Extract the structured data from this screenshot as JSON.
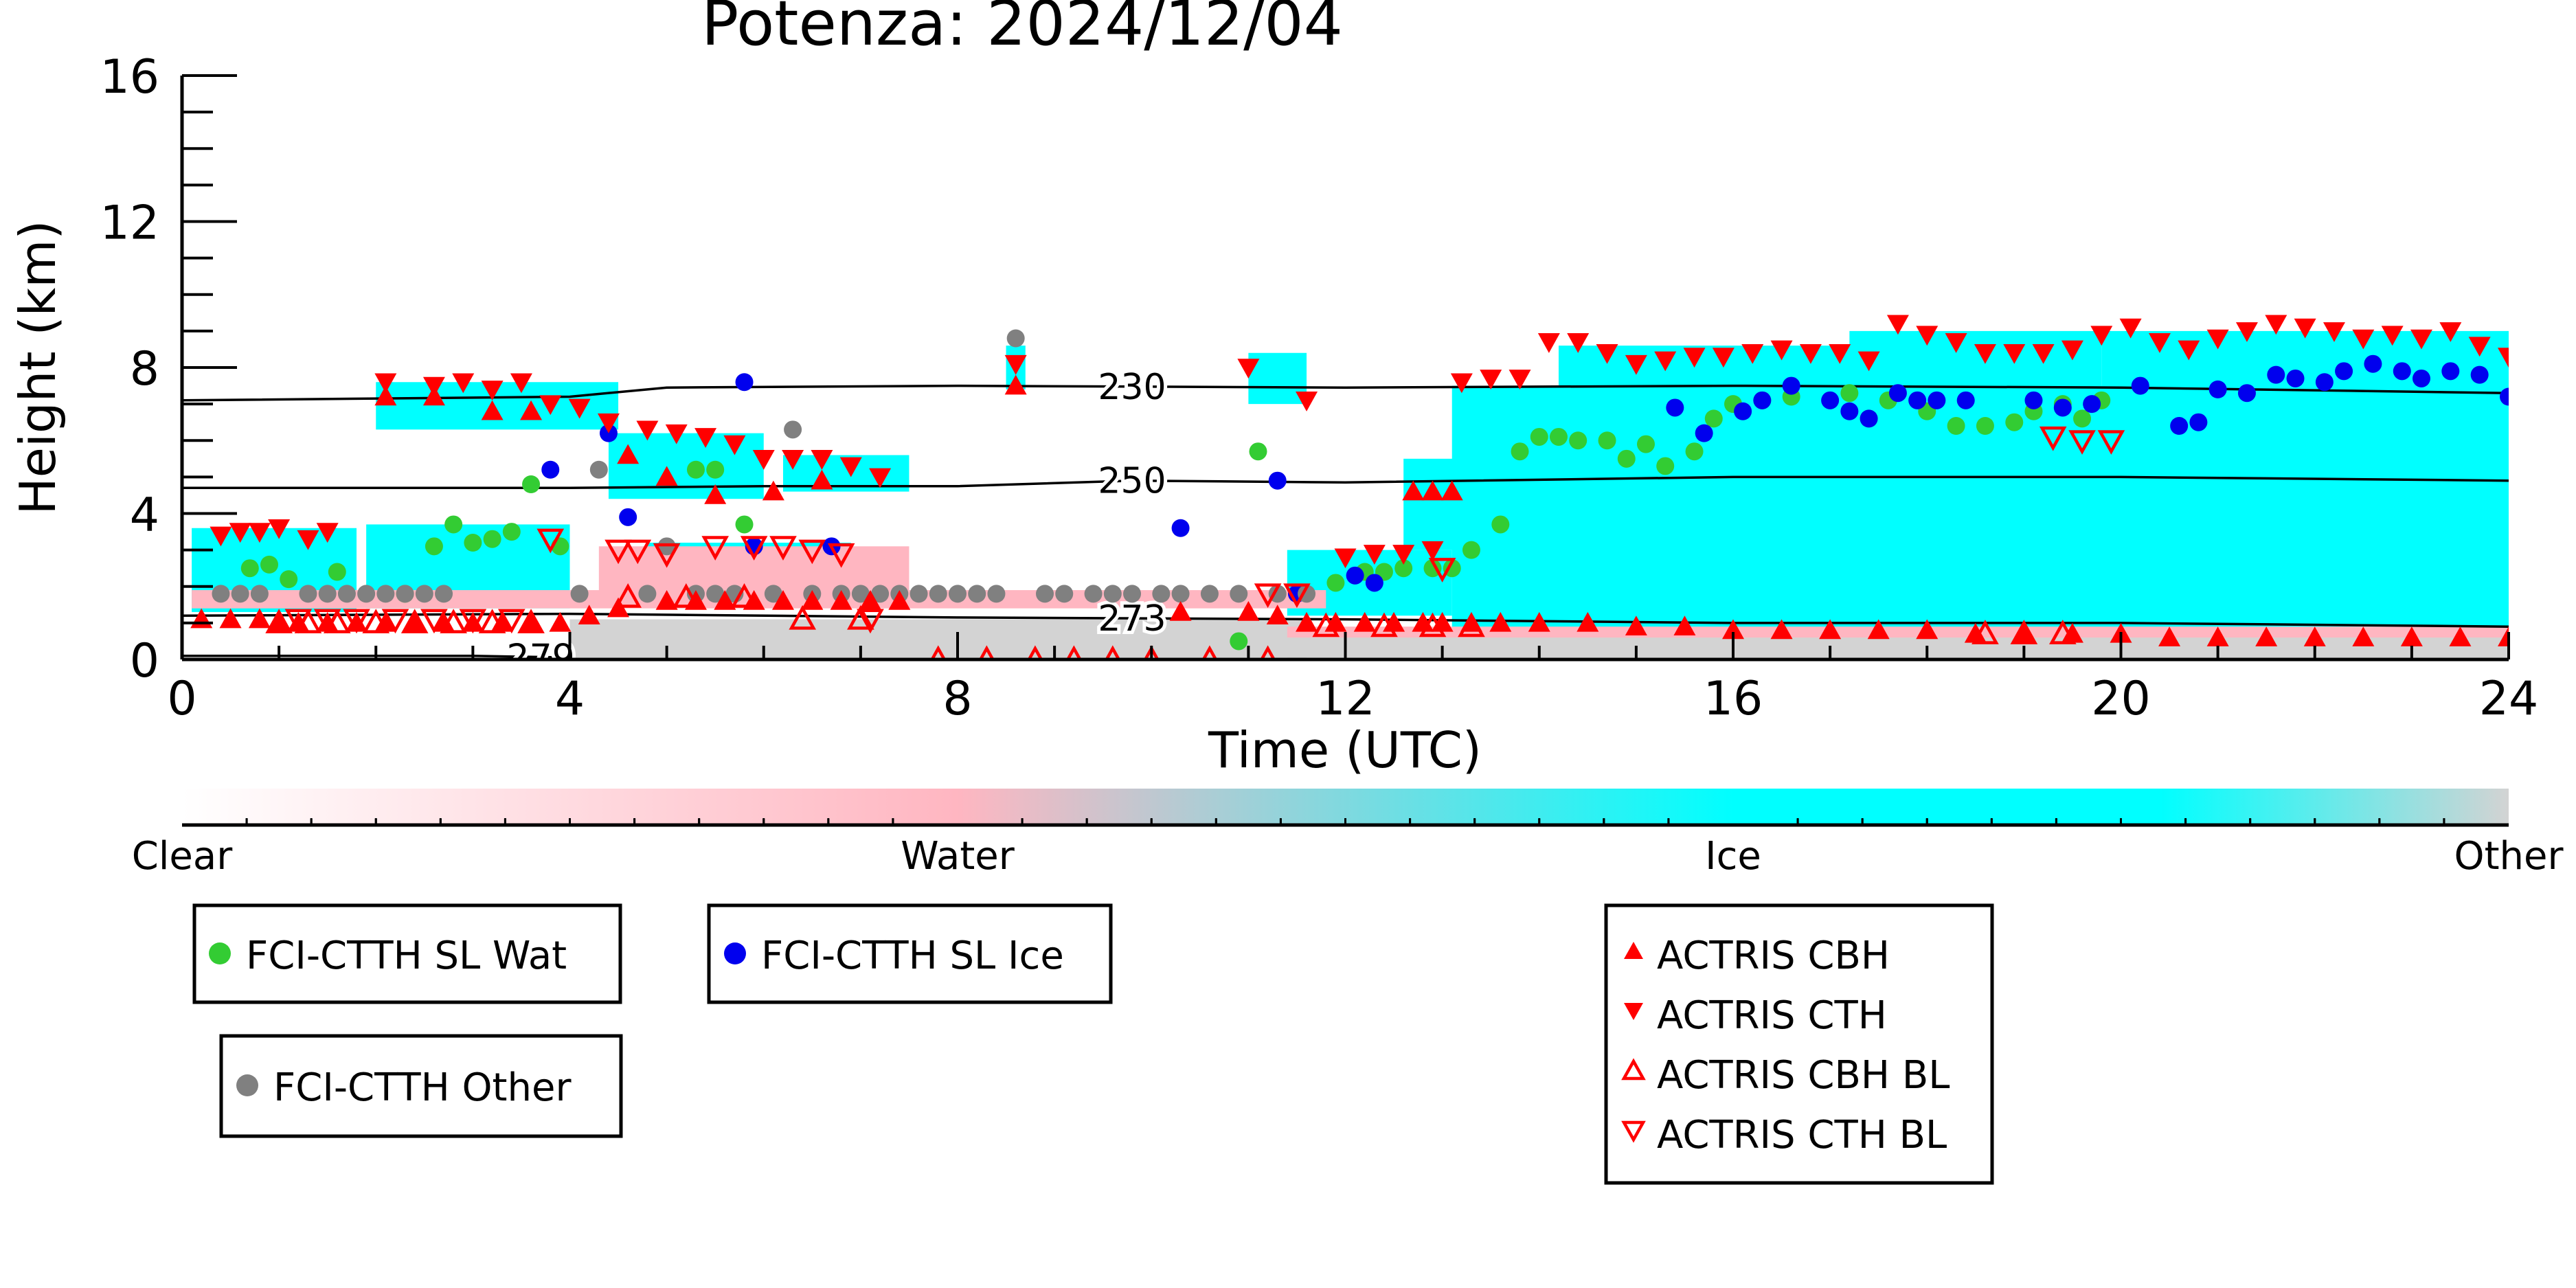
{
  "chart_data": {
    "type": "scatter",
    "title": "Potenza: 2024/12/04",
    "xlabel": "Time (UTC)",
    "ylabel": "Height (km)",
    "xlim": [
      0,
      24
    ],
    "ylim": [
      0,
      16
    ],
    "x_ticks": [
      "0",
      "4",
      "8",
      "12",
      "16",
      "20",
      "24"
    ],
    "y_ticks": [
      "0",
      "4",
      "8",
      "12",
      "16"
    ],
    "grid": false,
    "colors": {
      "water": "#33cc33",
      "ice": "#0000ee",
      "other": "#808080",
      "actris": "#ff0000",
      "cloud_ice": "#00ffff",
      "cloud_water": "#ffb6c1",
      "cloud_other": "#d3d3d3"
    },
    "classification_bar": {
      "labels": [
        "Clear",
        "Water",
        "Ice",
        "Other"
      ]
    },
    "contours": [
      {
        "label": "230",
        "label_x": 9.8,
        "points": [
          [
            0,
            7.1
          ],
          [
            4,
            7.2
          ],
          [
            5,
            7.45
          ],
          [
            8,
            7.5
          ],
          [
            12,
            7.45
          ],
          [
            16,
            7.5
          ],
          [
            20,
            7.45
          ],
          [
            24,
            7.3
          ]
        ]
      },
      {
        "label": "250",
        "label_x": 9.8,
        "points": [
          [
            0,
            4.7
          ],
          [
            4,
            4.7
          ],
          [
            6,
            4.75
          ],
          [
            8,
            4.75
          ],
          [
            9.8,
            4.9
          ],
          [
            12,
            4.85
          ],
          [
            16,
            5.0
          ],
          [
            20,
            5.0
          ],
          [
            24,
            4.9
          ]
        ]
      },
      {
        "label": "273",
        "label_x": 9.8,
        "points": [
          [
            0,
            1.2
          ],
          [
            4,
            1.25
          ],
          [
            8,
            1.15
          ],
          [
            12,
            1.1
          ],
          [
            16,
            1.0
          ],
          [
            20,
            1.0
          ],
          [
            24,
            0.9
          ]
        ]
      },
      {
        "label": "279",
        "label_x": 3.7,
        "points": [
          [
            0,
            0.1
          ],
          [
            3.0,
            0.1
          ],
          [
            4,
            0.05
          ]
        ]
      }
    ],
    "cloud_regions": [
      {
        "class": "ice",
        "t0": 0.1,
        "t1": 1.8,
        "h0": 1.3,
        "h1": 3.6
      },
      {
        "class": "ice",
        "t0": 1.9,
        "t1": 4.0,
        "h0": 1.4,
        "h1": 3.7
      },
      {
        "class": "ice",
        "t0": 2.0,
        "t1": 4.5,
        "h0": 6.3,
        "h1": 7.6
      },
      {
        "class": "ice",
        "t0": 4.4,
        "t1": 6.0,
        "h0": 4.4,
        "h1": 6.2
      },
      {
        "class": "ice",
        "t0": 6.2,
        "t1": 7.5,
        "h0": 4.6,
        "h1": 5.6
      },
      {
        "class": "ice",
        "t0": 4.8,
        "t1": 6.9,
        "h0": 1.8,
        "h1": 3.2
      },
      {
        "class": "ice",
        "t0": 8.5,
        "t1": 8.7,
        "h0": 7.4,
        "h1": 8.6
      },
      {
        "class": "ice",
        "t0": 11.0,
        "t1": 11.6,
        "h0": 7.0,
        "h1": 8.4
      },
      {
        "class": "ice",
        "t0": 11.4,
        "t1": 13.1,
        "h0": 1.2,
        "h1": 3.0
      },
      {
        "class": "ice",
        "t0": 12.6,
        "t1": 13.2,
        "h0": 3.0,
        "h1": 5.5
      },
      {
        "class": "ice",
        "t0": 13.1,
        "t1": 24,
        "h0": 0.8,
        "h1": 7.5
      },
      {
        "class": "ice",
        "t0": 14.2,
        "t1": 17.8,
        "h0": 7.2,
        "h1": 8.6
      },
      {
        "class": "ice",
        "t0": 17.2,
        "t1": 19.8,
        "h0": 7.0,
        "h1": 9.0
      },
      {
        "class": "ice",
        "t0": 19.8,
        "t1": 24,
        "h0": 7.0,
        "h1": 9.0
      },
      {
        "class": "water",
        "t0": 4.3,
        "t1": 7.5,
        "h0": 1.6,
        "h1": 3.1
      },
      {
        "class": "water",
        "t0": 0.1,
        "t1": 11.8,
        "h0": 1.4,
        "h1": 1.9
      },
      {
        "class": "other",
        "t0": 4.0,
        "t1": 11.6,
        "h0": 0.05,
        "h1": 1.1
      },
      {
        "class": "other",
        "t0": 11.4,
        "t1": 24,
        "h0": 0.05,
        "h1": 0.7
      },
      {
        "class": "water",
        "t0": 11.4,
        "t1": 24,
        "h0": 0.6,
        "h1": 0.9
      }
    ],
    "series": [
      {
        "name": "FCI-CTTH SL Wat",
        "marker": "circle",
        "color": "#33cc33",
        "x": [
          0.7,
          0.9,
          1.1,
          1.6,
          2.3,
          2.6,
          2.8,
          3.0,
          3.2,
          3.4,
          3.6,
          3.9,
          5.3,
          5.5,
          5.8,
          10.9,
          11.1,
          11.9,
          12.2,
          12.4,
          12.6,
          12.9,
          13.1,
          13.3,
          13.6,
          13.8,
          14.0,
          14.2,
          14.4,
          14.7,
          14.9,
          15.1,
          15.3,
          15.6,
          15.8,
          16.0,
          16.3,
          16.6,
          17.2,
          17.4,
          17.6,
          18.0,
          18.3,
          18.6,
          18.9,
          19.1,
          19.4,
          19.6,
          19.8
        ],
        "y": [
          2.5,
          2.6,
          2.2,
          2.4,
          1.8,
          3.1,
          3.7,
          3.2,
          3.3,
          3.5,
          4.8,
          3.1,
          5.2,
          5.2,
          3.7,
          0.5,
          5.7,
          2.1,
          2.4,
          2.4,
          2.5,
          2.5,
          2.5,
          3.0,
          3.7,
          5.7,
          6.1,
          6.1,
          6.0,
          6.0,
          5.5,
          5.9,
          5.3,
          5.7,
          6.6,
          7.0,
          7.1,
          7.2,
          7.3,
          6.6,
          7.1,
          6.8,
          6.4,
          6.4,
          6.5,
          6.8,
          7.0,
          6.6,
          7.1
        ]
      },
      {
        "name": "FCI-CTTH SL Ice",
        "marker": "circle",
        "color": "#0000ee",
        "x": [
          3.8,
          4.4,
          4.6,
          5.8,
          5.9,
          6.7,
          10.3,
          11.3,
          11.5,
          12.1,
          12.3,
          15.4,
          15.7,
          16.1,
          16.3,
          16.6,
          17.0,
          17.2,
          17.4,
          17.7,
          17.9,
          18.1,
          18.4,
          19.1,
          19.4,
          19.7,
          20.2,
          20.6,
          20.8,
          21.0,
          21.3,
          21.6,
          21.8,
          22.1,
          22.3,
          22.6,
          22.9,
          23.1,
          23.4,
          23.7,
          24.0
        ],
        "y": [
          5.2,
          6.2,
          3.9,
          7.6,
          3.1,
          3.1,
          3.6,
          4.9,
          1.8,
          2.3,
          2.1,
          6.9,
          6.2,
          6.8,
          7.1,
          7.5,
          7.1,
          6.8,
          6.6,
          7.3,
          7.1,
          7.1,
          7.1,
          7.1,
          6.9,
          7.0,
          7.5,
          6.4,
          6.5,
          7.4,
          7.3,
          7.8,
          7.7,
          7.6,
          7.9,
          8.1,
          7.9,
          7.7,
          7.9,
          7.8,
          7.2
        ]
      },
      {
        "name": "FCI-CTTH Other",
        "marker": "circle",
        "color": "#808080",
        "x": [
          0.4,
          0.6,
          0.8,
          1.3,
          1.5,
          1.7,
          1.9,
          2.1,
          2.3,
          2.5,
          2.7,
          4.1,
          4.3,
          4.8,
          5.0,
          5.3,
          5.5,
          5.7,
          6.1,
          6.3,
          6.5,
          6.8,
          7.0,
          7.2,
          7.4,
          7.6,
          7.8,
          8.0,
          8.2,
          8.4,
          8.6,
          8.9,
          9.1,
          9.4,
          9.6,
          9.8,
          10.1,
          10.3,
          10.6,
          10.9,
          11.3,
          11.6
        ],
        "y": [
          1.8,
          1.8,
          1.8,
          1.8,
          1.8,
          1.8,
          1.8,
          1.8,
          1.8,
          1.8,
          1.8,
          1.8,
          5.2,
          1.8,
          3.1,
          1.8,
          1.8,
          1.8,
          1.8,
          6.3,
          1.8,
          1.8,
          1.8,
          1.8,
          1.8,
          1.8,
          1.8,
          1.8,
          1.8,
          1.8,
          8.8,
          1.8,
          1.8,
          1.8,
          1.8,
          1.8,
          1.8,
          1.8,
          1.8,
          1.8,
          1.8,
          1.8
        ]
      },
      {
        "name": "ACTRIS CBH",
        "marker": "triangle-up",
        "color": "#ff0000",
        "x": [
          0.2,
          0.5,
          0.8,
          1.0,
          1.2,
          1.5,
          1.8,
          2.1,
          2.4,
          2.7,
          3.0,
          3.3,
          3.6,
          3.9,
          4.2,
          4.5,
          5.0,
          5.3,
          5.6,
          5.9,
          6.2,
          6.5,
          6.8,
          7.1,
          7.4,
          8.6,
          10.3,
          11.0,
          11.3,
          11.6,
          11.9,
          12.2,
          12.5,
          12.8,
          13.0,
          13.3,
          13.6,
          14.0,
          14.5,
          15.0,
          15.5,
          16.0,
          16.5,
          17.0,
          17.5,
          18.0,
          18.5,
          19.0,
          19.5,
          20.0,
          20.5,
          21.0,
          21.5,
          22.0,
          22.5,
          23.0,
          23.5,
          24.0,
          2.1,
          2.6,
          3.2,
          3.6,
          4.6,
          5.0,
          5.5,
          6.1,
          6.6,
          12.7,
          12.9,
          13.1
        ],
        "y": [
          1.1,
          1.1,
          1.1,
          1.0,
          1.0,
          1.0,
          1.0,
          1.0,
          1.0,
          1.0,
          1.0,
          1.0,
          1.0,
          1.0,
          1.2,
          1.4,
          1.6,
          1.6,
          1.6,
          1.6,
          1.6,
          1.6,
          1.6,
          1.6,
          1.6,
          7.5,
          1.3,
          1.3,
          1.2,
          1.0,
          1.0,
          1.0,
          1.0,
          1.0,
          1.0,
          1.0,
          1.0,
          1.0,
          1.0,
          0.9,
          0.9,
          0.8,
          0.8,
          0.8,
          0.8,
          0.8,
          0.7,
          0.7,
          0.7,
          0.7,
          0.6,
          0.6,
          0.6,
          0.6,
          0.6,
          0.6,
          0.6,
          0.6,
          7.2,
          7.2,
          6.8,
          6.8,
          5.6,
          5.0,
          4.5,
          4.6,
          4.9,
          4.6,
          4.6,
          4.6
        ]
      },
      {
        "name": "ACTRIS CTH",
        "marker": "triangle-down",
        "color": "#ff0000",
        "x": [
          0.4,
          0.6,
          0.8,
          1.0,
          1.3,
          1.5,
          2.1,
          2.6,
          2.9,
          3.2,
          3.5,
          3.8,
          4.1,
          4.4,
          4.8,
          5.1,
          5.4,
          5.7,
          6.0,
          6.3,
          6.6,
          6.9,
          7.2,
          8.6,
          11.0,
          11.6,
          12.0,
          12.3,
          12.6,
          12.9,
          13.2,
          13.5,
          13.8,
          14.1,
          14.4,
          14.7,
          15.0,
          15.3,
          15.6,
          15.9,
          16.2,
          16.5,
          16.8,
          17.1,
          17.4,
          17.7,
          18.0,
          18.3,
          18.6,
          18.9,
          19.2,
          19.5,
          19.8,
          20.1,
          20.4,
          20.7,
          21.0,
          21.3,
          21.6,
          21.9,
          22.2,
          22.5,
          22.8,
          23.1,
          23.4,
          23.7,
          24.0
        ],
        "y": [
          3.4,
          3.5,
          3.5,
          3.6,
          3.3,
          3.5,
          7.6,
          7.5,
          7.6,
          7.4,
          7.6,
          7.0,
          6.9,
          6.5,
          6.3,
          6.2,
          6.1,
          5.9,
          5.5,
          5.5,
          5.5,
          5.3,
          5.0,
          8.1,
          8.0,
          7.1,
          2.8,
          2.9,
          2.9,
          3.0,
          7.6,
          7.7,
          7.7,
          8.7,
          8.7,
          8.4,
          8.1,
          8.2,
          8.3,
          8.3,
          8.4,
          8.5,
          8.4,
          8.4,
          8.2,
          9.2,
          8.9,
          8.7,
          8.4,
          8.4,
          8.4,
          8.5,
          8.9,
          9.1,
          8.7,
          8.5,
          8.8,
          9.0,
          9.2,
          9.1,
          9.0,
          8.8,
          8.9,
          8.8,
          9.0,
          8.6,
          8.3
        ]
      },
      {
        "name": "ACTRIS CBH BL",
        "marker": "triangle-up-open",
        "color": "#ff0000",
        "x": [
          1.0,
          1.3,
          1.6,
          2.0,
          2.4,
          2.8,
          3.2,
          3.6,
          4.6,
          5.2,
          5.8,
          6.4,
          7.0,
          7.8,
          8.3,
          8.8,
          9.2,
          9.6,
          10.0,
          10.6,
          11.2,
          11.8,
          12.4,
          12.9,
          13.3,
          18.6,
          19.0,
          19.4
        ],
        "y": [
          1.0,
          1.0,
          1.0,
          1.0,
          1.0,
          1.0,
          1.0,
          1.0,
          1.7,
          1.7,
          1.7,
          1.1,
          1.1,
          0.0,
          0.0,
          0.0,
          0.0,
          0.0,
          0.0,
          0.0,
          0.0,
          0.9,
          0.9,
          0.9,
          0.9,
          0.7,
          0.7,
          0.7
        ]
      },
      {
        "name": "ACTRIS CTH BL",
        "marker": "triangle-down-open",
        "color": "#ff0000",
        "x": [
          1.2,
          1.5,
          1.8,
          2.2,
          2.6,
          3.0,
          3.4,
          3.8,
          4.5,
          4.7,
          5.0,
          5.5,
          5.9,
          6.2,
          6.5,
          6.8,
          7.1,
          11.2,
          11.5,
          13.0,
          19.3,
          19.6,
          19.9
        ],
        "y": [
          1.1,
          1.1,
          1.1,
          1.1,
          1.1,
          1.1,
          1.1,
          3.3,
          3.0,
          3.0,
          2.9,
          3.1,
          3.1,
          3.1,
          3.0,
          2.9,
          1.1,
          1.8,
          1.8,
          2.5,
          6.1,
          6.0,
          6.0
        ]
      }
    ],
    "legend": [
      {
        "label": "FCI-CTTH SL Wat",
        "marker": "circle",
        "color": "#33cc33"
      },
      {
        "label": "FCI-CTTH SL Ice",
        "marker": "circle",
        "color": "#0000ee"
      },
      {
        "label": "FCI-CTTH Other",
        "marker": "circle",
        "color": "#808080"
      },
      {
        "label": "ACTRIS CBH",
        "marker": "triangle-up",
        "color": "#ff0000"
      },
      {
        "label": "ACTRIS CTH",
        "marker": "triangle-down",
        "color": "#ff0000"
      },
      {
        "label": "ACTRIS CBH BL",
        "marker": "triangle-up-open",
        "color": "#ff0000"
      },
      {
        "label": "ACTRIS CTH BL",
        "marker": "triangle-down-open",
        "color": "#ff0000"
      }
    ]
  }
}
